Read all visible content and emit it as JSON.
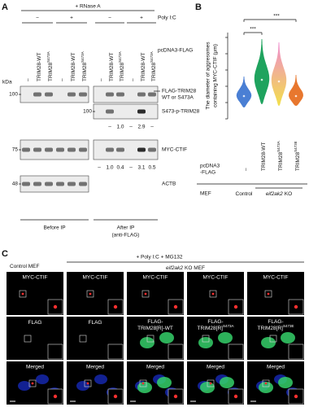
{
  "panel_a": {
    "letter": "A",
    "treatment": "+ RNase A",
    "poly_ic": {
      "label": "Poly I:C",
      "minus": "−",
      "plus": "+"
    },
    "vector": "pcDNA3-FLAG",
    "kda_label": "kDa",
    "lanes": [
      {
        "base": "–"
      },
      {
        "base": "TRIM28-WT"
      },
      {
        "base": "TRIM28",
        "sup": "S473A"
      }
    ],
    "blots": [
      {
        "label": [
          "FLAG-TRIM28",
          "WT or S473A"
        ],
        "marker": "100"
      },
      {
        "label": [
          "S473-p-TRIM28"
        ],
        "marker": "100",
        "quant": [
          "–",
          "1.0",
          "–",
          "2.9",
          "–"
        ]
      },
      {
        "label": [
          "MYC-CTIF"
        ],
        "marker": "75",
        "quant": [
          "–",
          "1.0",
          "0.4",
          "–",
          "3.1",
          "0.5"
        ]
      },
      {
        "label": [
          "ACTB"
        ],
        "marker": "48"
      }
    ],
    "groups": [
      [
        "Before IP"
      ],
      [
        "After IP",
        "(anti-FLAG)"
      ]
    ]
  },
  "panel_b": {
    "letter": "B",
    "type": "violin",
    "ylabel": [
      "The diameter of aggresomes",
      "containing MYC-CTIF (μm)"
    ],
    "ylim": [
      0,
      5.3
    ],
    "yticks": [
      0,
      1,
      2,
      3,
      4,
      5
    ],
    "categories": [
      {
        "base": "–"
      },
      {
        "base": "TRIM28-WT"
      },
      {
        "base": "TRIM28",
        "sup": "S473A"
      },
      {
        "base": "TRIM28",
        "sup": "S473E"
      }
    ],
    "violins": [
      {
        "color": "#4a7fd4",
        "min": 0.7,
        "median": 1.4,
        "max": 2.6
      },
      {
        "color": "#1fa35e",
        "min": 0.9,
        "median": 2.4,
        "max": 4.9
      },
      {
        "color": "#f08bd0",
        "color2": "#f2e04a",
        "min": 0.8,
        "median": 2.3,
        "max": 4.7
      },
      {
        "color": "#e8772e",
        "min": 0.8,
        "median": 1.4,
        "max": 2.7
      }
    ],
    "significance": [
      "***",
      "***"
    ],
    "vector": [
      "pcDNA3",
      "-FLAG"
    ],
    "cell_line": "MEF",
    "groups": [
      {
        "base": "Control"
      },
      {
        "gene": "eif2ak2",
        "suffix": "KO"
      }
    ]
  },
  "panel_c": {
    "letter": "C",
    "treatment": "+ Poly I:C  + MG132",
    "groups": [
      {
        "base": "Control MEF"
      },
      {
        "gene": "eif2ak2",
        "suffix": "KO MEF"
      }
    ],
    "rows": [
      [
        "MYC-CTIF",
        "MYC-CTIF",
        "MYC-CTIF",
        "MYC-CTIF",
        "MYC-CTIF"
      ],
      [
        {
          "base": "FLAG"
        },
        {
          "base": "FLAG"
        },
        {
          "line1": "FLAG-",
          "base": "TRIM28[R]-WT"
        },
        {
          "line1": "FLAG-",
          "base": "TRIM28[R]",
          "sup": "S473A"
        },
        {
          "line1": "FLAG-",
          "base": "TRIM28[R]",
          "sup": "S473E"
        }
      ],
      [
        "Merged",
        "Merged",
        "Merged",
        "Merged",
        "Merged"
      ]
    ]
  }
}
